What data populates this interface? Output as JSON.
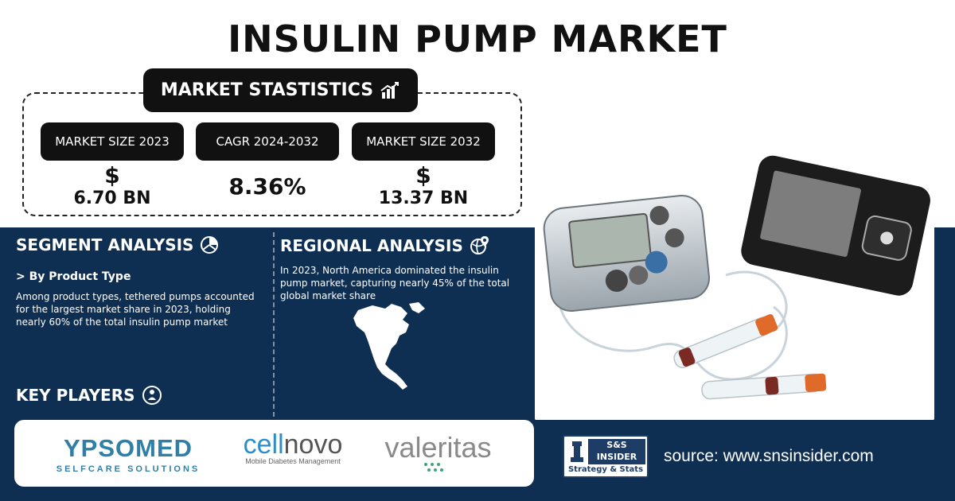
{
  "title": "INSULIN PUMP MARKET",
  "statistics": {
    "heading": "MARKET STASTISTICS",
    "heading_icon": "chart-icon",
    "items": [
      {
        "label": "MARKET SIZE 2023",
        "currency": "$",
        "value": "6.70 BN"
      },
      {
        "label": "CAGR 2024-2032",
        "currency": "",
        "value": "8.36%"
      },
      {
        "label": "MARKET SIZE 2032",
        "currency": "$",
        "value": "13.37 BN"
      }
    ]
  },
  "segment": {
    "heading": "SEGMENT ANALYSIS",
    "heading_icon": "segment-pie-icon",
    "subheading": "> By Product Type",
    "text": "Among product types, tethered pumps accounted for the largest market share in 2023, holding nearly 60% of the total insulin pump market"
  },
  "regional": {
    "heading": "REGIONAL ANALYSIS",
    "heading_icon": "globe-pin-icon",
    "text": "In 2023, North America dominated the insulin pump market, capturing nearly 45% of the total global market share",
    "map_icon": "north-america-map-icon"
  },
  "key_players": {
    "heading": "KEY PLAYERS",
    "heading_icon": "player-icon",
    "logos": [
      {
        "name": "YPSOMED",
        "tagline": "SELFCARE SOLUTIONS"
      },
      {
        "name_a": "cell",
        "name_b": "novo",
        "tagline": "Mobile Diabetes Management"
      },
      {
        "name": "valeritas"
      }
    ]
  },
  "brand": {
    "top": "S&S INSIDER",
    "bottom": "Strategy & Stats"
  },
  "source": "source: www.snsinsider.com",
  "colors": {
    "navy": "#0f2f52",
    "black": "#111111",
    "accent_orange": "#e06a2a"
  }
}
